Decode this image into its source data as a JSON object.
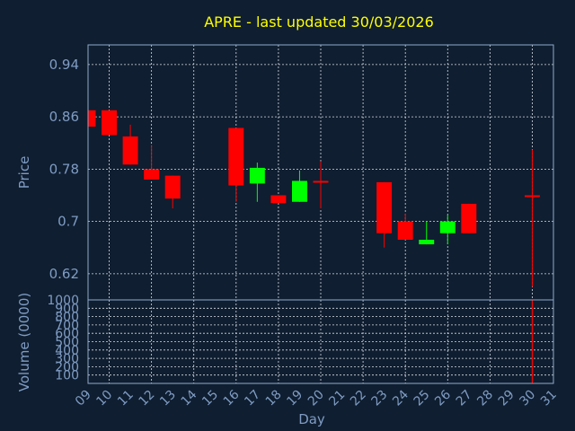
{
  "chart_data": {
    "type": "candlestick",
    "title": "APRE - last updated 30/03/2026",
    "xlabel": "Day",
    "ylabel": "Price",
    "volume_label": "Volume (0000)",
    "x_ticks": [
      "09",
      "10",
      "11",
      "12",
      "13",
      "14",
      "15",
      "16",
      "17",
      "18",
      "19",
      "20",
      "21",
      "22",
      "23",
      "24",
      "25",
      "26",
      "27",
      "28",
      "29",
      "30",
      "31"
    ],
    "xlim": [
      9,
      31
    ],
    "ylim": [
      0.58,
      0.97
    ],
    "y_ticks": [
      0.62,
      0.7,
      0.78,
      0.86,
      0.94
    ],
    "y_tick_labels": [
      "0.62",
      "0.7",
      "0.78",
      "0.86",
      "0.94"
    ],
    "volume_ylim": [
      0,
      1000
    ],
    "volume_ticks": [
      100,
      200,
      300,
      400,
      500,
      600,
      700,
      800,
      900,
      1000
    ],
    "grid": true,
    "colors": {
      "up": "#00ff00",
      "down": "#ff0000",
      "title": "#ffff00",
      "axis_text": "#7f9cc4",
      "background": "#0f1e30"
    },
    "candles": [
      {
        "day": 9,
        "open": 0.87,
        "high": 0.87,
        "low": 0.845,
        "close": 0.845
      },
      {
        "day": 10,
        "open": 0.87,
        "high": 0.87,
        "low": 0.832,
        "close": 0.832
      },
      {
        "day": 11,
        "open": 0.83,
        "high": 0.848,
        "low": 0.787,
        "close": 0.787
      },
      {
        "day": 12,
        "open": 0.78,
        "high": 0.817,
        "low": 0.764,
        "close": 0.764
      },
      {
        "day": 13,
        "open": 0.77,
        "high": 0.77,
        "low": 0.72,
        "close": 0.735
      },
      {
        "day": 16,
        "open": 0.843,
        "high": 0.843,
        "low": 0.73,
        "close": 0.755
      },
      {
        "day": 17,
        "open": 0.758,
        "high": 0.79,
        "low": 0.73,
        "close": 0.782
      },
      {
        "day": 18,
        "open": 0.74,
        "high": 0.74,
        "low": 0.728,
        "close": 0.728
      },
      {
        "day": 19,
        "open": 0.73,
        "high": 0.778,
        "low": 0.73,
        "close": 0.762
      },
      {
        "day": 20,
        "open": 0.762,
        "high": 0.792,
        "low": 0.72,
        "close": 0.76
      },
      {
        "day": 23,
        "open": 0.76,
        "high": 0.76,
        "low": 0.66,
        "close": 0.682
      },
      {
        "day": 24,
        "open": 0.7,
        "high": 0.712,
        "low": 0.672,
        "close": 0.672
      },
      {
        "day": 25,
        "open": 0.665,
        "high": 0.7,
        "low": 0.665,
        "close": 0.672
      },
      {
        "day": 26,
        "open": 0.682,
        "high": 0.71,
        "low": 0.665,
        "close": 0.7
      },
      {
        "day": 27,
        "open": 0.727,
        "high": 0.727,
        "low": 0.682,
        "close": 0.682
      },
      {
        "day": 30,
        "open": 0.74,
        "high": 0.81,
        "low": 0.6,
        "close": 0.738
      }
    ],
    "volume": [
      {
        "day": 30,
        "value": 1000
      }
    ]
  }
}
